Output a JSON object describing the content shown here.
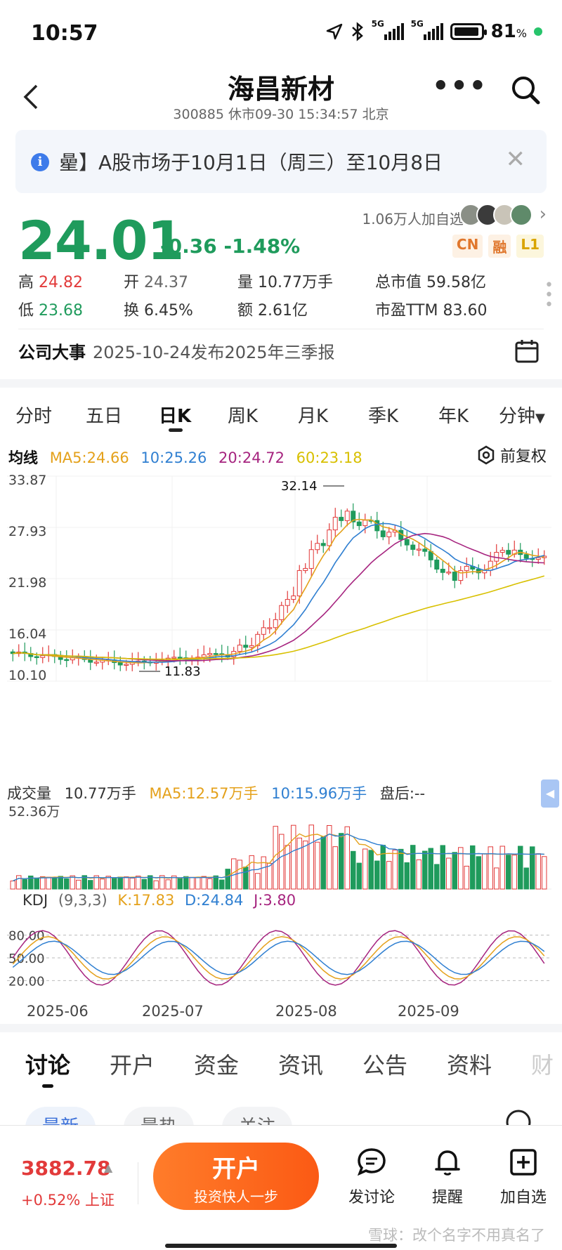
{
  "status": {
    "time": "10:57",
    "battery": "81",
    "battery_unit": "%",
    "signal1": "5G",
    "signal2": "5G"
  },
  "header": {
    "title": "海昌新材",
    "subtitle": "300885 休市09-30 15:34:57 北京"
  },
  "notice": {
    "text": "曐】A股市场于10月1日（周三）至10月8日"
  },
  "quote": {
    "price": "24.01",
    "change": "-0.36",
    "change_pct": "-1.48%",
    "followers": "1.06万人加自选",
    "badges": [
      "CN",
      "融",
      "L1"
    ],
    "high_label": "高",
    "high": "24.82",
    "open_label": "开",
    "open": "24.37",
    "vol_label": "量",
    "vol": "10.77万手",
    "mcap_label": "总市值",
    "mcap": "59.58亿",
    "low_label": "低",
    "low": "23.68",
    "turn_label": "换",
    "turn": "6.45%",
    "amt_label": "额",
    "amt": "2.61亿",
    "pe_label": "市盈TTM",
    "pe": "83.60"
  },
  "event": {
    "label": "公司大事",
    "text": "2025-10-24发布2025年三季报"
  },
  "period_tabs": [
    "分时",
    "五日",
    "日K",
    "周K",
    "月K",
    "季K",
    "年K",
    "分钟"
  ],
  "active_period": "日K",
  "ma": {
    "label": "均线",
    "ma5": "MA5:24.66",
    "ma10": "10:25.26",
    "ma20": "20:24.72",
    "ma60": "60:23.18",
    "fuquan": "前复权",
    "colors": {
      "ma5": "#e4a11b",
      "ma10": "#2f7fd1",
      "ma20": "#a6247f",
      "ma60": "#d8c000"
    }
  },
  "volume": {
    "label": "成交量",
    "vol": "10.77万手",
    "ma5": "MA5:12.57万手",
    "ma10": "10:15.96万手",
    "after": "盘后:--",
    "max_label": "52.36万"
  },
  "kdj": {
    "label": "KDJ",
    "params": "(9,3,3)",
    "k": "K:17.83",
    "d": "D:24.84",
    "j": "J:3.80",
    "levels": [
      "80.00",
      "50.00",
      "20.00"
    ]
  },
  "chart_data": {
    "type": "candlestick",
    "y_ticks": [
      "33.87",
      "27.93",
      "21.98",
      "16.04",
      "10.10"
    ],
    "ylim": [
      10.1,
      33.87
    ],
    "x_ticks": [
      "2025-06",
      "2025-07",
      "2025-08",
      "2025-09"
    ],
    "annotations": {
      "high": "32.14",
      "low": "11.83"
    }
  },
  "bottom_tabs": [
    "讨论",
    "开户",
    "资金",
    "资讯",
    "公告",
    "资料",
    "财"
  ],
  "chips": [
    "最新",
    "最热",
    "关注"
  ],
  "bottom": {
    "index_value": "3882.78",
    "index_change": "+0.52% 上证",
    "open_title": "开户",
    "open_sub": "投资快人一步",
    "discuss": "发讨论",
    "remind": "提醒",
    "watch": "加自选",
    "watermark": "雪球：改个名字不用真名了"
  }
}
